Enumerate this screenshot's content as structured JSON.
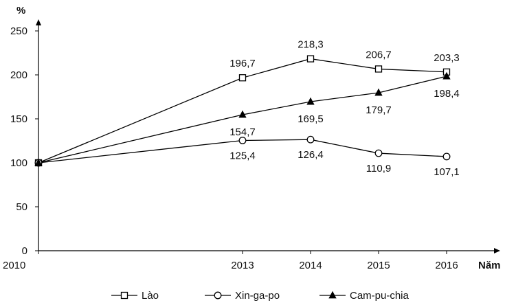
{
  "chart_data": {
    "type": "line",
    "x": [
      2010,
      2013,
      2014,
      2015,
      2016
    ],
    "x_tick_labels": [
      "2010",
      "2013",
      "2014",
      "2015",
      "2016"
    ],
    "xlabel": "Năm",
    "ylabel": "%",
    "ylim": [
      0,
      250
    ],
    "y_ticks": [
      0,
      50,
      100,
      150,
      200,
      250
    ],
    "y_tick_labels": [
      "0",
      "50",
      "100",
      "150",
      "200",
      "250"
    ],
    "grid": false,
    "legend_position": "bottom",
    "series": [
      {
        "name": "Lào",
        "marker": "open-square",
        "values": [
          100,
          196.7,
          218.3,
          206.7,
          203.3
        ],
        "labels": [
          "",
          "196,7",
          "218,3",
          "206,7",
          "203,3"
        ]
      },
      {
        "name": "Xin-ga-po",
        "marker": "open-circle",
        "values": [
          100,
          125.4,
          126.4,
          110.9,
          107.1
        ],
        "labels": [
          "",
          "125,4",
          "126,4",
          "110,9",
          "107,1"
        ]
      },
      {
        "name": "Cam-pu-chia",
        "marker": "filled-triangle",
        "values": [
          100,
          154.7,
          169.5,
          179.7,
          198.4
        ],
        "labels": [
          "",
          "154,7",
          "169,5",
          "179,7",
          "198,4"
        ]
      }
    ],
    "colors": {
      "line": "#000000",
      "marker_fill_open": "#ffffff",
      "marker_fill_solid": "#000000"
    }
  }
}
